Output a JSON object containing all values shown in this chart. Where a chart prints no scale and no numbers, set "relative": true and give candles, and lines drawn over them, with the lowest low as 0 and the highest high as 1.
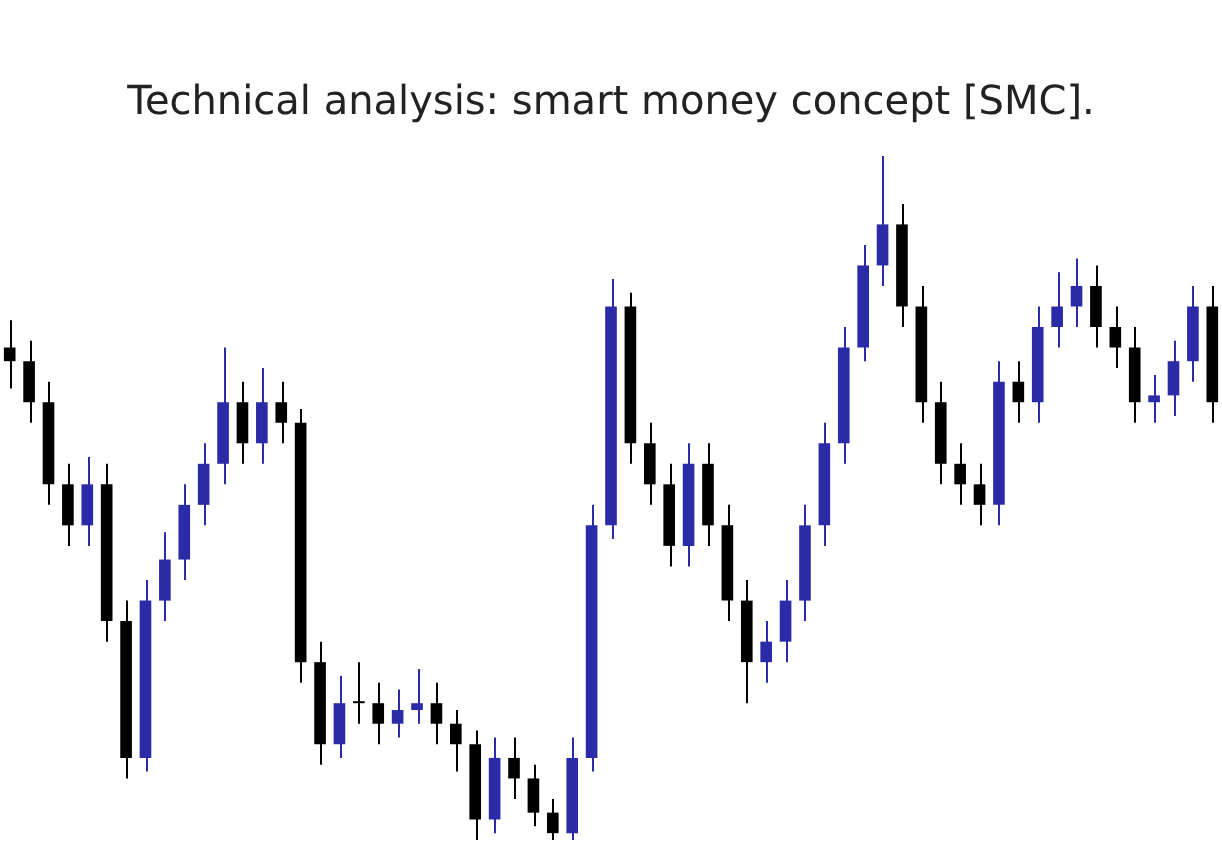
{
  "chart_data": {
    "type": "candlestick",
    "title": "Technical analysis: smart money concept [SMC].",
    "relative": true,
    "colors": [
      "#000000",
      "#000000",
      "#000000",
      "#000000",
      "#2b2ba8",
      "#000000",
      "#000000",
      "#2b2ba8",
      "#2b2ba8",
      "#2b2ba8",
      "#2b2ba8",
      "#2b2ba8",
      "#000000",
      "#2b2ba8",
      "#000000",
      "#000000",
      "#000000",
      "#2b2ba8",
      "#000000",
      "#000000",
      "#2b2ba8",
      "#2b2ba8",
      "#000000",
      "#000000",
      "#000000",
      "#2b2ba8",
      "#000000",
      "#000000",
      "#000000",
      "#2b2ba8",
      "#2b2ba8",
      "#2b2ba8",
      "#000000",
      "#000000",
      "#000000",
      "#2b2ba8",
      "#000000",
      "#000000",
      "#000000",
      "#2b2ba8",
      "#2b2ba8",
      "#2b2ba8",
      "#2b2ba8",
      "#2b2ba8",
      "#2b2ba8",
      "#2b2ba8",
      "#000000",
      "#000000",
      "#000000",
      "#000000",
      "#000000",
      "#2b2ba8",
      "#000000",
      "#2b2ba8",
      "#2b2ba8",
      "#2b2ba8",
      "#000000",
      "#000000",
      "#000000",
      "#2b2ba8",
      "#2b2ba8",
      "#2b2ba8",
      "#000000"
    ],
    "categories": [
      null,
      null,
      null,
      null,
      null,
      null,
      null,
      null,
      null,
      null,
      null,
      null,
      null,
      null,
      null,
      null,
      null,
      null,
      null,
      null,
      null,
      null,
      null,
      null,
      null,
      null,
      null,
      null,
      null,
      null,
      null,
      null,
      null,
      null,
      null,
      null,
      null,
      null,
      null,
      null,
      null,
      null,
      null,
      null,
      null,
      null,
      null,
      null,
      null,
      null,
      null,
      null,
      null,
      null,
      null,
      null,
      null,
      null,
      null,
      null,
      null,
      null,
      null
    ],
    "ohlc": [
      [
        0.72,
        0.76,
        0.66,
        0.7
      ],
      [
        0.7,
        0.73,
        0.61,
        0.64
      ],
      [
        0.64,
        0.67,
        0.49,
        0.52
      ],
      [
        0.52,
        0.55,
        0.43,
        0.46
      ],
      [
        0.46,
        0.56,
        0.43,
        0.52
      ],
      [
        0.52,
        0.55,
        0.29,
        0.32
      ],
      [
        0.32,
        0.35,
        0.09,
        0.12
      ],
      [
        0.12,
        0.38,
        0.1,
        0.35
      ],
      [
        0.35,
        0.45,
        0.32,
        0.41
      ],
      [
        0.41,
        0.52,
        0.38,
        0.49
      ],
      [
        0.49,
        0.58,
        0.46,
        0.55
      ],
      [
        0.55,
        0.72,
        0.52,
        0.64
      ],
      [
        0.64,
        0.67,
        0.55,
        0.58
      ],
      [
        0.58,
        0.69,
        0.55,
        0.64
      ],
      [
        0.64,
        0.67,
        0.58,
        0.61
      ],
      [
        0.61,
        0.63,
        0.23,
        0.26
      ],
      [
        0.26,
        0.29,
        0.11,
        0.14
      ],
      [
        0.14,
        0.24,
        0.12,
        0.2
      ],
      [
        0.2,
        0.26,
        0.17,
        0.2
      ],
      [
        0.2,
        0.23,
        0.14,
        0.17
      ],
      [
        0.17,
        0.22,
        0.15,
        0.19
      ],
      [
        0.19,
        0.25,
        0.17,
        0.2
      ],
      [
        0.2,
        0.23,
        0.14,
        0.17
      ],
      [
        0.17,
        0.19,
        0.1,
        0.14
      ],
      [
        0.14,
        0.16,
        0.0,
        0.03
      ],
      [
        0.03,
        0.15,
        0.01,
        0.12
      ],
      [
        0.12,
        0.15,
        0.06,
        0.09
      ],
      [
        0.09,
        0.11,
        0.02,
        0.04
      ],
      [
        0.04,
        0.06,
        0.0,
        0.01
      ],
      [
        0.01,
        0.15,
        0.0,
        0.12
      ],
      [
        0.12,
        0.49,
        0.1,
        0.46
      ],
      [
        0.46,
        0.82,
        0.44,
        0.78
      ],
      [
        0.78,
        0.8,
        0.55,
        0.58
      ],
      [
        0.58,
        0.61,
        0.49,
        0.52
      ],
      [
        0.52,
        0.55,
        0.4,
        0.43
      ],
      [
        0.43,
        0.58,
        0.4,
        0.55
      ],
      [
        0.55,
        0.58,
        0.43,
        0.46
      ],
      [
        0.46,
        0.49,
        0.32,
        0.35
      ],
      [
        0.35,
        0.38,
        0.2,
        0.26
      ],
      [
        0.26,
        0.32,
        0.23,
        0.29
      ],
      [
        0.29,
        0.38,
        0.26,
        0.35
      ],
      [
        0.35,
        0.49,
        0.32,
        0.46
      ],
      [
        0.46,
        0.61,
        0.43,
        0.58
      ],
      [
        0.58,
        0.75,
        0.55,
        0.72
      ],
      [
        0.72,
        0.87,
        0.7,
        0.84
      ],
      [
        0.84,
        1.0,
        0.81,
        0.9
      ],
      [
        0.9,
        0.93,
        0.75,
        0.78
      ],
      [
        0.78,
        0.81,
        0.61,
        0.64
      ],
      [
        0.64,
        0.67,
        0.52,
        0.55
      ],
      [
        0.55,
        0.58,
        0.49,
        0.52
      ],
      [
        0.52,
        0.55,
        0.46,
        0.49
      ],
      [
        0.49,
        0.7,
        0.46,
        0.67
      ],
      [
        0.67,
        0.7,
        0.61,
        0.64
      ],
      [
        0.64,
        0.78,
        0.61,
        0.75
      ],
      [
        0.75,
        0.83,
        0.72,
        0.78
      ],
      [
        0.78,
        0.85,
        0.75,
        0.81
      ],
      [
        0.81,
        0.84,
        0.72,
        0.75
      ],
      [
        0.75,
        0.78,
        0.69,
        0.72
      ],
      [
        0.72,
        0.75,
        0.61,
        0.64
      ],
      [
        0.64,
        0.68,
        0.61,
        0.65
      ],
      [
        0.65,
        0.73,
        0.62,
        0.7
      ],
      [
        0.7,
        0.81,
        0.67,
        0.78
      ],
      [
        0.78,
        0.81,
        0.61,
        0.64
      ]
    ]
  }
}
